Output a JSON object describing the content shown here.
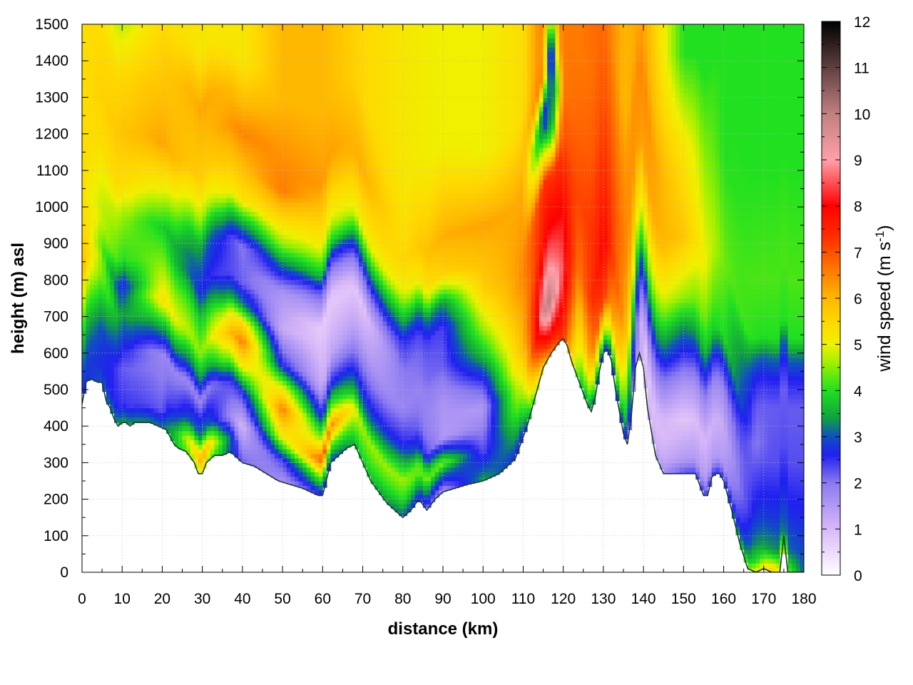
{
  "chart_data": {
    "type": "heatmap",
    "xlabel": "distance (km)",
    "ylabel": "height (m) asl",
    "colorbar_label": "wind speed (m s",
    "colorbar_label_exp": "-1",
    "colorbar_label_end": ")",
    "xlim": [
      0,
      180
    ],
    "ylim": [
      0,
      1500
    ],
    "clim": [
      0,
      12
    ],
    "x_ticks": [
      0,
      10,
      20,
      30,
      40,
      50,
      60,
      70,
      80,
      90,
      100,
      110,
      120,
      130,
      140,
      150,
      160,
      170,
      180
    ],
    "y_ticks": [
      0,
      100,
      200,
      300,
      400,
      500,
      600,
      700,
      800,
      900,
      1000,
      1100,
      1200,
      1300,
      1400,
      1500
    ],
    "c_ticks": [
      0,
      1,
      2,
      3,
      4,
      5,
      6,
      7,
      8,
      9,
      10,
      11,
      12
    ],
    "grid": true,
    "colormap": [
      {
        "v": 0,
        "c": "#ffffff"
      },
      {
        "v": 1,
        "c": "#d8b8f8"
      },
      {
        "v": 2,
        "c": "#8a7af0"
      },
      {
        "v": 2.6,
        "c": "#2020f0"
      },
      {
        "v": 3,
        "c": "#1050c0"
      },
      {
        "v": 3.4,
        "c": "#10a040"
      },
      {
        "v": 4,
        "c": "#20e020"
      },
      {
        "v": 4.6,
        "c": "#a0f000"
      },
      {
        "v": 5,
        "c": "#f0f000"
      },
      {
        "v": 5.5,
        "c": "#ffd800"
      },
      {
        "v": 6,
        "c": "#ffb800"
      },
      {
        "v": 6.7,
        "c": "#ff7000"
      },
      {
        "v": 7.3,
        "c": "#ff3000"
      },
      {
        "v": 8,
        "c": "#ff0000"
      },
      {
        "v": 9,
        "c": "#ffa0a8"
      },
      {
        "v": 10,
        "c": "#c08080"
      },
      {
        "v": 11,
        "c": "#604040"
      },
      {
        "v": 12,
        "c": "#000000"
      }
    ],
    "terrain": {
      "x": [
        0,
        1,
        2,
        4,
        5,
        6,
        7,
        8,
        9,
        10,
        11,
        12,
        13,
        15,
        17,
        19,
        21,
        22,
        23,
        24,
        26,
        28,
        29,
        30,
        31,
        33,
        35,
        37,
        40,
        43,
        46,
        49,
        52,
        55,
        57,
        59,
        60,
        62,
        64,
        66,
        68,
        70,
        72,
        74,
        76,
        78,
        80,
        82,
        84,
        86,
        88,
        90,
        93,
        96,
        100,
        104,
        108,
        111,
        113,
        115,
        117,
        119,
        120,
        121,
        122,
        123,
        124,
        125,
        126,
        127,
        128,
        129,
        130,
        131,
        132,
        133,
        134,
        135,
        136,
        137,
        138,
        139,
        140,
        141,
        143,
        145,
        147,
        150,
        153,
        155,
        156,
        157,
        158,
        159,
        160,
        162,
        164,
        166,
        168,
        170,
        172,
        174,
        175,
        176,
        178,
        180
      ],
      "y": [
        460,
        520,
        530,
        520,
        520,
        470,
        450,
        420,
        400,
        410,
        410,
        400,
        410,
        410,
        410,
        400,
        390,
        370,
        350,
        340,
        330,
        300,
        270,
        270,
        300,
        320,
        320,
        330,
        300,
        290,
        270,
        250,
        240,
        230,
        220,
        210,
        210,
        300,
        320,
        340,
        350,
        300,
        250,
        220,
        190,
        170,
        150,
        170,
        200,
        170,
        200,
        220,
        230,
        240,
        250,
        270,
        310,
        400,
        480,
        560,
        600,
        630,
        640,
        620,
        580,
        550,
        520,
        490,
        460,
        440,
        480,
        550,
        600,
        610,
        580,
        500,
        440,
        380,
        350,
        430,
        560,
        600,
        560,
        450,
        320,
        270,
        270,
        270,
        270,
        210,
        210,
        260,
        270,
        270,
        250,
        170,
        80,
        10,
        0,
        10,
        0,
        0,
        100,
        0,
        0,
        0
      ]
    },
    "anchors": [
      {
        "x": 0,
        "h": [
          [
            0,
            2.6
          ],
          [
            100,
            3.2
          ],
          [
            200,
            4.2
          ],
          [
            350,
            6
          ],
          [
            500,
            5.3
          ],
          [
            600,
            5.4
          ]
        ]
      },
      {
        "x": 10,
        "h": [
          [
            0,
            3.5
          ],
          [
            50,
            2.5
          ],
          [
            150,
            2.2
          ],
          [
            300,
            3.4
          ],
          [
            380,
            2.6
          ],
          [
            450,
            4.0
          ],
          [
            570,
            4.6
          ],
          [
            660,
            5.4
          ],
          [
            800,
            5.8
          ],
          [
            950,
            5.5
          ],
          [
            1150,
            4.4
          ]
        ]
      },
      {
        "x": 20,
        "h": [
          [
            0,
            3.2
          ],
          [
            50,
            2.2
          ],
          [
            200,
            1.8
          ],
          [
            280,
            3.6
          ],
          [
            350,
            5.3
          ],
          [
            450,
            4.5
          ],
          [
            550,
            3.8
          ],
          [
            650,
            5.0
          ],
          [
            780,
            6.2
          ],
          [
            980,
            5.7
          ],
          [
            1120,
            5.4
          ]
        ]
      },
      {
        "x": 30,
        "h": [
          [
            0,
            4.8
          ],
          [
            40,
            6.3
          ],
          [
            100,
            3.4
          ],
          [
            200,
            1.8
          ],
          [
            260,
            3.3
          ],
          [
            330,
            4.5
          ],
          [
            420,
            3.8
          ],
          [
            500,
            2.6
          ],
          [
            620,
            3.4
          ],
          [
            700,
            4.6
          ],
          [
            800,
            5.6
          ],
          [
            1000,
            6.2
          ],
          [
            1150,
            5.2
          ]
        ]
      },
      {
        "x": 40,
        "h": [
          [
            0,
            2.2
          ],
          [
            100,
            1.0
          ],
          [
            190,
            2.5
          ],
          [
            260,
            5.0
          ],
          [
            330,
            6.6
          ],
          [
            380,
            5.5
          ],
          [
            430,
            3.4
          ],
          [
            490,
            2.2
          ],
          [
            590,
            2.0
          ],
          [
            660,
            3.6
          ],
          [
            720,
            5.3
          ],
          [
            900,
            6.5
          ],
          [
            1100,
            5.2
          ]
        ]
      },
      {
        "x": 50,
        "h": [
          [
            0,
            1.6
          ],
          [
            60,
            2.4
          ],
          [
            120,
            5.0
          ],
          [
            200,
            6.6
          ],
          [
            260,
            5.0
          ],
          [
            320,
            2.6
          ],
          [
            420,
            1.2
          ],
          [
            520,
            1.6
          ],
          [
            600,
            3.3
          ],
          [
            650,
            4.5
          ],
          [
            800,
            6.6
          ],
          [
            1050,
            6.0
          ]
        ]
      },
      {
        "x": 60,
        "h": [
          [
            0,
            2.4
          ],
          [
            50,
            4.4
          ],
          [
            100,
            7.0
          ],
          [
            150,
            4.8
          ],
          [
            220,
            2.6
          ],
          [
            300,
            1.2
          ],
          [
            460,
            0.7
          ],
          [
            560,
            2.3
          ],
          [
            600,
            3.6
          ],
          [
            680,
            5.0
          ],
          [
            850,
            6.3
          ],
          [
            1050,
            6.0
          ]
        ]
      },
      {
        "x": 70,
        "h": [
          [
            0,
            3.8
          ],
          [
            100,
            4.6
          ],
          [
            150,
            3.3
          ],
          [
            220,
            2.4
          ],
          [
            330,
            1.4
          ],
          [
            430,
            0.8
          ],
          [
            520,
            2.2
          ],
          [
            580,
            3.6
          ],
          [
            640,
            5.0
          ],
          [
            800,
            6.1
          ],
          [
            1000,
            5.5
          ]
        ]
      },
      {
        "x": 80,
        "h": [
          [
            0,
            3.0
          ],
          [
            50,
            4.0
          ],
          [
            100,
            4.6
          ],
          [
            200,
            2.6
          ],
          [
            300,
            1.8
          ],
          [
            400,
            2.0
          ],
          [
            480,
            2.5
          ],
          [
            540,
            3.6
          ],
          [
            620,
            5.0
          ],
          [
            700,
            5.5
          ],
          [
            900,
            5.2
          ]
        ]
      },
      {
        "x": 90,
        "h": [
          [
            0,
            1.6
          ],
          [
            60,
            3.5
          ],
          [
            80,
            4.4
          ],
          [
            150,
            1.5
          ],
          [
            250,
            1.6
          ],
          [
            350,
            2.2
          ],
          [
            450,
            2.4
          ],
          [
            520,
            3.4
          ],
          [
            560,
            4.6
          ],
          [
            600,
            5.6
          ],
          [
            700,
            6.1
          ],
          [
            950,
            5.0
          ]
        ]
      },
      {
        "x": 100,
        "h": [
          [
            0,
            3.5
          ],
          [
            80,
            2.3
          ],
          [
            200,
            1.5
          ],
          [
            270,
            2.4
          ],
          [
            340,
            3.6
          ],
          [
            420,
            4.6
          ],
          [
            520,
            5.6
          ],
          [
            700,
            6.2
          ],
          [
            900,
            5.0
          ]
        ]
      },
      {
        "x": 110,
        "h": [
          [
            0,
            2.4
          ],
          [
            50,
            3.5
          ],
          [
            120,
            4.6
          ],
          [
            250,
            6.0
          ],
          [
            450,
            6.5
          ],
          [
            700,
            6.1
          ],
          [
            900,
            5.4
          ]
        ]
      },
      {
        "x": 116,
        "h": [
          [
            0,
            6.2
          ],
          [
            50,
            7.8
          ],
          [
            150,
            10.3
          ],
          [
            250,
            9.0
          ],
          [
            350,
            8.0
          ],
          [
            500,
            7.4
          ],
          [
            650,
            2.6
          ],
          [
            700,
            2.4
          ],
          [
            800,
            7.0
          ]
        ]
      },
      {
        "x": 120,
        "h": [
          [
            0,
            7.4
          ],
          [
            100,
            8.0
          ],
          [
            200,
            8.5
          ],
          [
            350,
            8.0
          ],
          [
            550,
            7.0
          ],
          [
            700,
            6.6
          ],
          [
            850,
            6.6
          ]
        ]
      },
      {
        "x": 124,
        "h": [
          [
            0,
            3.8
          ],
          [
            100,
            5.0
          ],
          [
            300,
            6.6
          ],
          [
            500,
            7.1
          ],
          [
            700,
            6.8
          ],
          [
            900,
            6.6
          ]
        ]
      },
      {
        "x": 130,
        "h": [
          [
            0,
            2.5
          ],
          [
            50,
            4.5
          ],
          [
            150,
            7.3
          ],
          [
            300,
            8.0
          ],
          [
            500,
            7.4
          ],
          [
            700,
            7.0
          ],
          [
            900,
            6.8
          ]
        ]
      },
      {
        "x": 135,
        "h": [
          [
            0,
            2.6
          ],
          [
            60,
            4.0
          ],
          [
            150,
            5.0
          ],
          [
            300,
            6.3
          ],
          [
            500,
            6.6
          ],
          [
            700,
            6.4
          ],
          [
            900,
            6.0
          ]
        ]
      },
      {
        "x": 140,
        "h": [
          [
            0,
            1.0
          ],
          [
            100,
            0.8
          ],
          [
            200,
            1.8
          ],
          [
            270,
            2.6
          ],
          [
            330,
            3.6
          ],
          [
            420,
            4.8
          ],
          [
            600,
            6.2
          ],
          [
            800,
            6.5
          ],
          [
            950,
            6.2
          ]
        ]
      },
      {
        "x": 150,
        "h": [
          [
            0,
            2.4
          ],
          [
            40,
            1.5
          ],
          [
            150,
            0.8
          ],
          [
            250,
            1.6
          ],
          [
            330,
            2.5
          ],
          [
            400,
            3.3
          ],
          [
            480,
            4.5
          ],
          [
            650,
            5.8
          ],
          [
            900,
            5.2
          ],
          [
            1150,
            4.0
          ]
        ]
      },
      {
        "x": 160,
        "h": [
          [
            0,
            2.6
          ],
          [
            50,
            1.5
          ],
          [
            150,
            1.2
          ],
          [
            250,
            1.8
          ],
          [
            320,
            2.6
          ],
          [
            360,
            3.3
          ],
          [
            400,
            4.0
          ],
          [
            600,
            4.4
          ],
          [
            900,
            4.0
          ]
        ]
      },
      {
        "x": 168,
        "h": [
          [
            0,
            5.0
          ],
          [
            30,
            4.0
          ],
          [
            80,
            3.3
          ],
          [
            150,
            2.8
          ],
          [
            250,
            2.4
          ],
          [
            350,
            2.0
          ],
          [
            450,
            2.2
          ],
          [
            530,
            2.6
          ],
          [
            590,
            3.2
          ],
          [
            640,
            4.0
          ],
          [
            800,
            4.2
          ],
          [
            1100,
            4.0
          ]
        ]
      },
      {
        "x": 172,
        "h": [
          [
            0,
            5.8
          ],
          [
            20,
            5.0
          ],
          [
            60,
            3.4
          ],
          [
            150,
            2.8
          ],
          [
            300,
            2.3
          ],
          [
            450,
            2.2
          ],
          [
            530,
            2.6
          ],
          [
            590,
            3.2
          ],
          [
            640,
            4.0
          ],
          [
            800,
            4.2
          ],
          [
            1100,
            4.0
          ]
        ]
      },
      {
        "x": 180,
        "h": [
          [
            0,
            3.0
          ],
          [
            100,
            2.8
          ],
          [
            300,
            2.3
          ],
          [
            450,
            2.2
          ],
          [
            530,
            2.6
          ],
          [
            590,
            3.2
          ],
          [
            640,
            4.0
          ],
          [
            800,
            4.2
          ],
          [
            1100,
            4.0
          ]
        ]
      }
    ],
    "blobs": [
      {
        "x": 117,
        "z": 1400,
        "rx": 1.5,
        "rz": 130,
        "v": 2.4,
        "w": 1
      },
      {
        "x": 117,
        "z": 1250,
        "rx": 1.0,
        "rz": 100,
        "v": 3.5,
        "w": 0.8
      }
    ]
  }
}
